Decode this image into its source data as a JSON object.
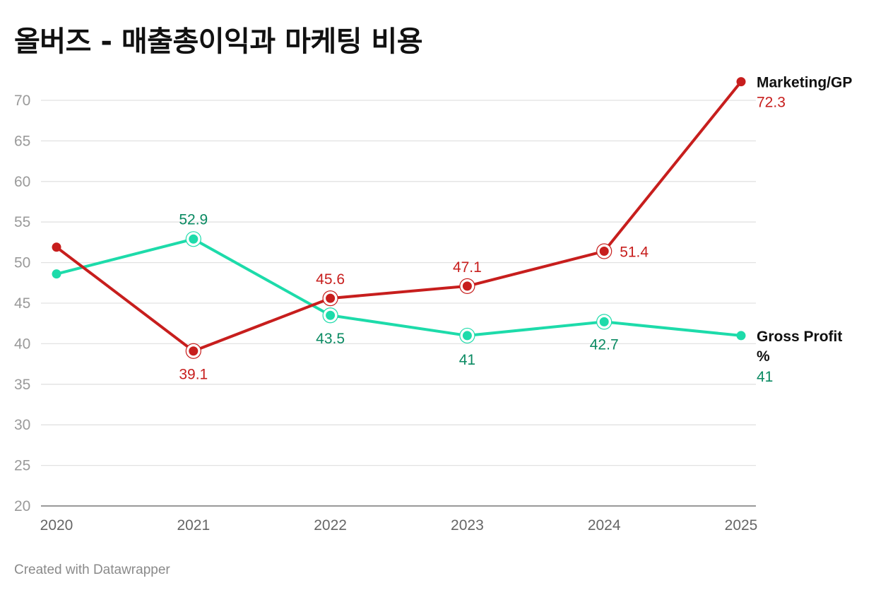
{
  "title": "올버즈 - 매출총이익과 마케팅 비용",
  "footer": "Created with Datawrapper",
  "chart_data": {
    "type": "line",
    "title": "올버즈 - 매출총이익과 마케팅 비용",
    "x": [
      "2020",
      "2021",
      "2022",
      "2023",
      "2024",
      "2025"
    ],
    "ylim": [
      20,
      70
    ],
    "yticks": [
      20,
      25,
      30,
      35,
      40,
      45,
      50,
      55,
      60,
      65,
      70
    ],
    "grid": true,
    "legend": "inline-right",
    "series": [
      {
        "name": "Marketing/GP",
        "color": "#c71e1d",
        "label_color": "#c71e1d",
        "values": [
          51.9,
          39.1,
          45.6,
          47.1,
          51.4,
          72.3
        ],
        "labels": [
          "",
          "39.1",
          "45.6",
          "47.1",
          "51.4",
          "72.3"
        ]
      },
      {
        "name": "Gross Profit %",
        "color": "#1ddbaa",
        "label_color": "#0a8a62",
        "values": [
          48.6,
          52.9,
          43.5,
          41,
          42.7,
          41
        ],
        "labels": [
          "",
          "52.9",
          "43.5",
          "41",
          "42.7",
          "41"
        ]
      }
    ]
  }
}
